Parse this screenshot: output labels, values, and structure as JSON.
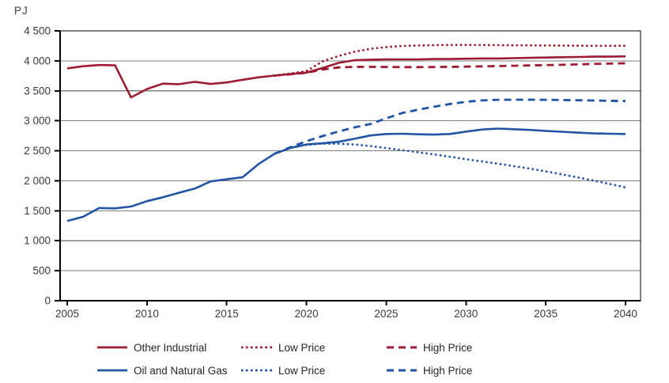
{
  "colors": {
    "red": "#9e1b32",
    "blue": "#2254a5",
    "grid": "#7f7f7f",
    "axis": "#000000",
    "text": "#3a3a3a",
    "background": "#ffffff"
  },
  "chart_data": {
    "type": "line",
    "title": "",
    "unit_label": "PJ",
    "xlabel": "",
    "ylabel": "PJ",
    "x": {
      "min": 2005,
      "max": 2040,
      "tick_values": [
        2005,
        2010,
        2015,
        2020,
        2025,
        2030,
        2035,
        2040
      ],
      "tick_labels": [
        "2005",
        "2010",
        "2015",
        "2020",
        "2025",
        "2030",
        "2035",
        "2040"
      ]
    },
    "y": {
      "min": 0,
      "max": 4500,
      "step": 500,
      "tick_values": [
        0,
        500,
        1000,
        1500,
        2000,
        2500,
        3000,
        3500,
        4000,
        4500
      ],
      "tick_labels": [
        "0",
        "500",
        "1 000",
        "1 500",
        "2 000",
        "2 500",
        "3 000",
        "3 500",
        "4 000",
        "4 500"
      ]
    },
    "grid": "horizontal",
    "legend_position": "bottom",
    "years": [
      2005,
      2006,
      2007,
      2008,
      2009,
      2010,
      2011,
      2012,
      2013,
      2014,
      2015,
      2016,
      2017,
      2018,
      2019,
      2020,
      2021,
      2022,
      2023,
      2024,
      2025,
      2026,
      2027,
      2028,
      2029,
      2030,
      2031,
      2032,
      2033,
      2034,
      2035,
      2036,
      2037,
      2038,
      2039,
      2040
    ],
    "series": [
      {
        "name": "Other Industrial",
        "scenario": "Reference",
        "color_key": "red",
        "line_style": "solid",
        "values": [
          3875,
          3910,
          3930,
          3925,
          3390,
          3530,
          3620,
          3610,
          3650,
          3615,
          3640,
          3685,
          3725,
          3755,
          3780,
          3805,
          3880,
          3965,
          4010,
          4020,
          4025,
          4025,
          4025,
          4030,
          4030,
          4035,
          4040,
          4040,
          4045,
          4050,
          4055,
          4060,
          4065,
          4070,
          4070,
          4075
        ]
      },
      {
        "name": "Oil and Natural Gas",
        "scenario": "Reference",
        "color_key": "blue",
        "line_style": "solid",
        "values": [
          1330,
          1400,
          1545,
          1540,
          1570,
          1660,
          1725,
          1800,
          1870,
          1990,
          2025,
          2060,
          2280,
          2450,
          2550,
          2605,
          2625,
          2650,
          2700,
          2755,
          2780,
          2785,
          2775,
          2770,
          2780,
          2820,
          2855,
          2870,
          2860,
          2848,
          2832,
          2818,
          2803,
          2790,
          2785,
          2780
        ]
      },
      {
        "name": "High Price",
        "scenario": "High Price (Other Industrial)",
        "color_key": "red",
        "line_style": "dashed",
        "values": [
          null,
          null,
          null,
          null,
          null,
          null,
          null,
          null,
          null,
          null,
          null,
          null,
          null,
          3755,
          3775,
          3800,
          3855,
          3890,
          3900,
          3900,
          3898,
          3896,
          3895,
          3897,
          3900,
          3904,
          3908,
          3913,
          3918,
          3923,
          3928,
          3934,
          3941,
          3948,
          3954,
          3960
        ]
      },
      {
        "name": "High Price",
        "scenario": "High Price (Oil and Natural Gas)",
        "color_key": "blue",
        "line_style": "dashed",
        "values": [
          null,
          null,
          null,
          null,
          null,
          null,
          null,
          null,
          null,
          null,
          null,
          null,
          null,
          2450,
          2560,
          2660,
          2745,
          2820,
          2890,
          2945,
          3040,
          3130,
          3185,
          3235,
          3280,
          3318,
          3340,
          3350,
          3352,
          3352,
          3350,
          3347,
          3343,
          3339,
          3334,
          3330
        ]
      },
      {
        "name": "Low Price",
        "scenario": "Low Price (Other Industrial)",
        "color_key": "red",
        "line_style": "dotted",
        "values": [
          null,
          null,
          null,
          null,
          null,
          null,
          null,
          null,
          null,
          null,
          null,
          null,
          null,
          3755,
          3790,
          3830,
          3990,
          4080,
          4150,
          4200,
          4230,
          4248,
          4256,
          4262,
          4265,
          4265,
          4264,
          4262,
          4260,
          4258,
          4256,
          4254,
          4252,
          4251,
          4250,
          4250
        ]
      },
      {
        "name": "Low Price",
        "scenario": "Low Price (Oil and Natural Gas)",
        "color_key": "blue",
        "line_style": "dotted",
        "values": [
          null,
          null,
          null,
          null,
          null,
          null,
          null,
          null,
          null,
          null,
          null,
          null,
          null,
          2450,
          2545,
          2600,
          2620,
          2618,
          2605,
          2580,
          2545,
          2510,
          2475,
          2440,
          2400,
          2360,
          2322,
          2285,
          2245,
          2203,
          2158,
          2108,
          2056,
          2003,
          1948,
          1890
        ]
      }
    ]
  },
  "legend": {
    "rows": [
      [
        {
          "label": "Other Industrial",
          "style": "solid",
          "color_key": "red"
        },
        {
          "label": "Low Price",
          "style": "dotted",
          "color_key": "red"
        },
        {
          "label": "High Price",
          "style": "dashed",
          "color_key": "red"
        }
      ],
      [
        {
          "label": "Oil and Natural Gas",
          "style": "solid",
          "color_key": "blue"
        },
        {
          "label": "Low Price",
          "style": "dotted",
          "color_key": "blue"
        },
        {
          "label": "High Price",
          "style": "dashed",
          "color_key": "blue"
        }
      ]
    ]
  }
}
